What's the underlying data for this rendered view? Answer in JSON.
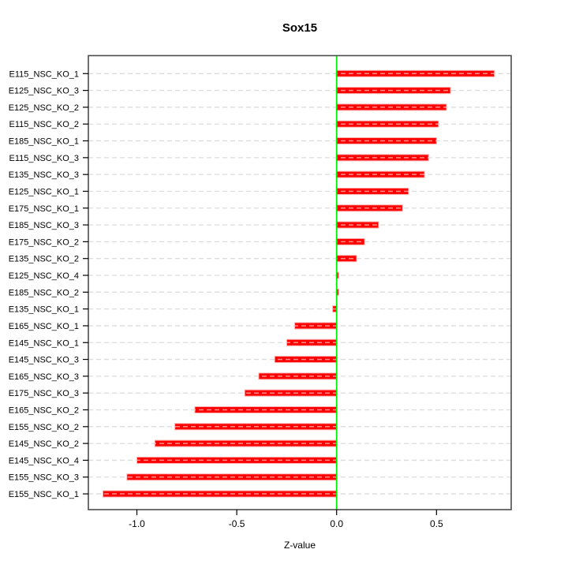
{
  "title": "Sox15",
  "chart_data": {
    "type": "bar",
    "orientation": "horizontal",
    "title": "Sox15",
    "xlabel": "Z-value",
    "ylabel": "",
    "xlim": [
      -1.243,
      0.874
    ],
    "xticks": [
      -1.0,
      -0.5,
      0.0,
      0.5
    ],
    "xtick_labels": [
      "-1.0",
      "-0.5",
      "0.0",
      "0.5"
    ],
    "grid": "horizontal-dashed-per-category",
    "legend": "none",
    "zero_line_x": 0,
    "categories": [
      "E115_NSC_KO_1",
      "E125_NSC_KO_3",
      "E125_NSC_KO_2",
      "E115_NSC_KO_2",
      "E185_NSC_KO_1",
      "E115_NSC_KO_3",
      "E135_NSC_KO_3",
      "E125_NSC_KO_1",
      "E175_NSC_KO_1",
      "E185_NSC_KO_3",
      "E175_NSC_KO_2",
      "E135_NSC_KO_2",
      "E125_NSC_KO_4",
      "E185_NSC_KO_2",
      "E135_NSC_KO_1",
      "E165_NSC_KO_1",
      "E145_NSC_KO_1",
      "E145_NSC_KO_3",
      "E165_NSC_KO_3",
      "E175_NSC_KO_3",
      "E165_NSC_KO_2",
      "E155_NSC_KO_2",
      "E145_NSC_KO_2",
      "E145_NSC_KO_4",
      "E155_NSC_KO_3",
      "E155_NSC_KO_1"
    ],
    "values": [
      0.79,
      0.57,
      0.55,
      0.51,
      0.5,
      0.46,
      0.44,
      0.36,
      0.33,
      0.21,
      0.14,
      0.1,
      0.01,
      0.01,
      -0.02,
      -0.21,
      -0.25,
      -0.31,
      -0.39,
      -0.46,
      -0.71,
      -0.81,
      -0.91,
      -1.0,
      -1.05,
      -1.17
    ],
    "colors": {
      "bar": "#ff0000",
      "bar_edge": "#ffb0b0",
      "zero_line": "#00ee00",
      "grid_line": "#dcdcdc",
      "bar_dash_overlay": "rgba(255,255,255,0.55)",
      "box": "#4d4d4d",
      "tick": "#000000",
      "text": "#000000",
      "background": "#ffffff"
    }
  }
}
